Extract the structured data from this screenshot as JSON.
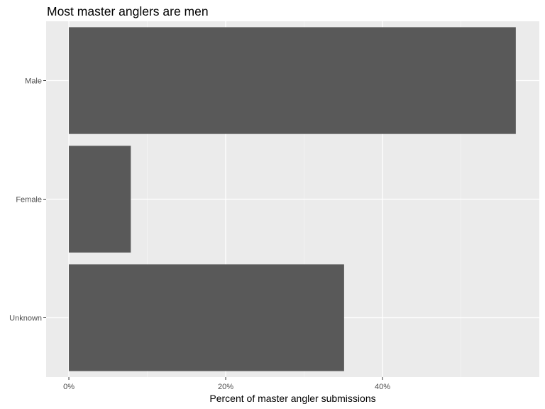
{
  "chart_data": {
    "type": "bar",
    "orientation": "horizontal",
    "title": "Most master anglers are men",
    "xlabel": "Percent of master angler submissions",
    "ylabel": "",
    "categories": [
      "Male",
      "Female",
      "Unknown"
    ],
    "values": [
      57.0,
      7.9,
      35.1
    ],
    "value_unit": "%",
    "xlim": [
      -2.9,
      60.0
    ],
    "x_ticks": [
      0,
      20,
      40
    ],
    "x_tick_labels": [
      "0%",
      "20%",
      "40%"
    ],
    "grid": true,
    "legend": "none",
    "colors": {
      "bar": "#595959",
      "panel": "#ebebeb",
      "grid_major": "#ffffff",
      "grid_minor": "#f5f5f5",
      "tick_text": "#4d4d4d"
    }
  }
}
